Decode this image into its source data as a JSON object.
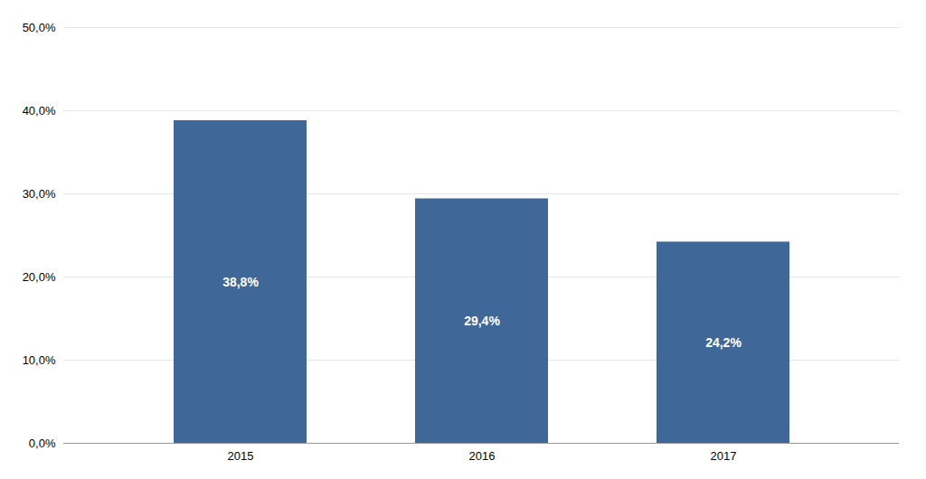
{
  "chart_data": {
    "type": "bar",
    "categories": [
      "2015",
      "2016",
      "2017"
    ],
    "values": [
      38.8,
      29.4,
      24.2
    ],
    "value_labels": [
      "38,8%",
      "29,4%",
      "24,2%"
    ],
    "data_labels": true,
    "color": "#3F6898",
    "ylim": [
      0,
      50
    ],
    "yticks": [
      {
        "value": 0,
        "label": "0,0%"
      },
      {
        "value": 10,
        "label": "10,0%"
      },
      {
        "value": 20,
        "label": "20,0%"
      },
      {
        "value": 30,
        "label": "30,0%"
      },
      {
        "value": 40,
        "label": "40,0%"
      },
      {
        "value": 50,
        "label": "50,0%"
      }
    ],
    "grid": true
  }
}
